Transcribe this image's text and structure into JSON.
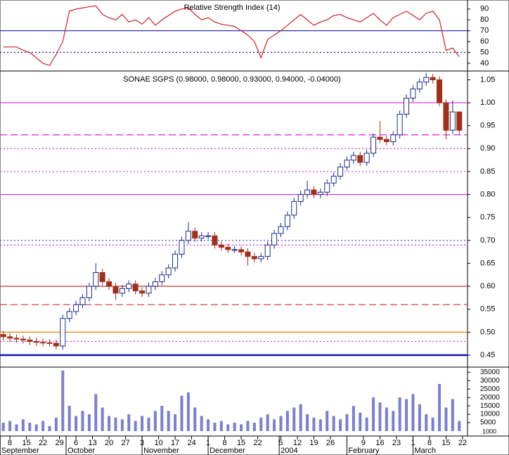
{
  "chart_data": [
    {
      "type": "line",
      "title": "Relative Strength Index (14)",
      "color": "#cc2222",
      "x": [
        0,
        2,
        4,
        6,
        8,
        10,
        12,
        14,
        16,
        18,
        20,
        22,
        24,
        26,
        28,
        30,
        32,
        34,
        36,
        38,
        40,
        42,
        44,
        46,
        48,
        50,
        52,
        54,
        56,
        58,
        60,
        62,
        64,
        66,
        68,
        70,
        72,
        74,
        76,
        78,
        80,
        82,
        84,
        86,
        88,
        90,
        92,
        94,
        96,
        98,
        100,
        102,
        104,
        106,
        108,
        110,
        112,
        114,
        116,
        118,
        120,
        122,
        124,
        126,
        128,
        130,
        132,
        134,
        136,
        138
      ],
      "values": [
        55,
        55,
        55,
        52,
        50,
        45,
        40,
        38,
        48,
        60,
        88,
        90,
        91,
        92,
        93,
        85,
        82,
        80,
        85,
        78,
        80,
        76,
        82,
        75,
        80,
        84,
        88,
        90,
        91,
        85,
        80,
        82,
        78,
        76,
        75,
        74,
        70,
        66,
        60,
        45,
        62,
        66,
        70,
        75,
        80,
        85,
        80,
        75,
        78,
        80,
        84,
        85,
        82,
        80,
        78,
        82,
        86,
        80,
        75,
        82,
        85,
        88,
        84,
        80,
        86,
        88,
        80,
        52,
        54,
        46
      ],
      "xlim": [
        -1,
        140.5
      ],
      "ylim": [
        33.5,
        97
      ],
      "yticks": [
        40,
        50,
        60,
        70,
        80,
        90
      ],
      "levels": [
        {
          "value": 70,
          "color": "#1a1aa0",
          "style": "solid"
        },
        {
          "value": 50,
          "color": "#1a1aa0",
          "style": "dotted"
        }
      ]
    },
    {
      "type": "candlestick",
      "title": "SONAE SGPS (0.98000, 0.98000, 0.93000, 0.94000, -0.04000)",
      "up_color": "#ffffff",
      "down_color": "#a0301a",
      "edge_color": "#1a2a8a",
      "x": [
        0,
        2,
        4,
        6,
        8,
        10,
        12,
        14,
        16,
        18,
        20,
        22,
        24,
        26,
        28,
        30,
        32,
        34,
        36,
        38,
        40,
        42,
        44,
        46,
        48,
        50,
        52,
        54,
        56,
        58,
        60,
        62,
        64,
        66,
        68,
        70,
        72,
        74,
        76,
        78,
        80,
        82,
        84,
        86,
        88,
        90,
        92,
        94,
        96,
        98,
        100,
        102,
        104,
        106,
        108,
        110,
        112,
        114,
        116,
        118,
        120,
        122,
        124,
        126,
        128,
        130,
        132,
        134,
        136,
        138
      ],
      "open": [
        0.495,
        0.49,
        0.487,
        0.485,
        0.483,
        0.48,
        0.478,
        0.477,
        0.476,
        0.47,
        0.53,
        0.545,
        0.56,
        0.575,
        0.6,
        0.63,
        0.61,
        0.6,
        0.585,
        0.595,
        0.605,
        0.59,
        0.585,
        0.6,
        0.61,
        0.625,
        0.64,
        0.67,
        0.7,
        0.72,
        0.705,
        0.71,
        0.71,
        0.69,
        0.685,
        0.68,
        0.68,
        0.675,
        0.665,
        0.66,
        0.665,
        0.69,
        0.715,
        0.73,
        0.755,
        0.785,
        0.8,
        0.81,
        0.8,
        0.805,
        0.825,
        0.84,
        0.86,
        0.875,
        0.885,
        0.87,
        0.89,
        0.925,
        0.92,
        0.915,
        0.93,
        0.975,
        1.01,
        1.03,
        1.045,
        1.055,
        1.05,
        1.0,
        0.94,
        0.98
      ],
      "high": [
        0.503,
        0.498,
        0.495,
        0.493,
        0.491,
        0.488,
        0.486,
        0.485,
        0.484,
        0.538,
        0.553,
        0.568,
        0.583,
        0.608,
        0.65,
        0.638,
        0.618,
        0.608,
        0.603,
        0.613,
        0.613,
        0.598,
        0.608,
        0.618,
        0.633,
        0.648,
        0.678,
        0.708,
        0.74,
        0.728,
        0.718,
        0.718,
        0.718,
        0.698,
        0.693,
        0.688,
        0.688,
        0.683,
        0.673,
        0.673,
        0.698,
        0.723,
        0.738,
        0.763,
        0.793,
        0.808,
        0.83,
        0.818,
        0.813,
        0.833,
        0.848,
        0.868,
        0.883,
        0.893,
        0.893,
        0.898,
        0.933,
        0.96,
        0.928,
        0.938,
        0.983,
        1.018,
        1.038,
        1.053,
        1.065,
        1.063,
        1.058,
        1.008,
        1.005,
        0.98
      ],
      "low": [
        0.482,
        0.479,
        0.477,
        0.475,
        0.472,
        0.47,
        0.469,
        0.468,
        0.462,
        0.462,
        0.522,
        0.537,
        0.552,
        0.567,
        0.592,
        0.602,
        0.592,
        0.57,
        0.577,
        0.587,
        0.582,
        0.577,
        0.577,
        0.592,
        0.602,
        0.617,
        0.632,
        0.662,
        0.692,
        0.697,
        0.697,
        0.702,
        0.682,
        0.677,
        0.672,
        0.672,
        0.667,
        0.645,
        0.652,
        0.652,
        0.657,
        0.682,
        0.707,
        0.722,
        0.747,
        0.777,
        0.792,
        0.792,
        0.792,
        0.797,
        0.817,
        0.832,
        0.852,
        0.867,
        0.862,
        0.862,
        0.882,
        0.912,
        0.907,
        0.907,
        0.922,
        0.967,
        1.002,
        1.022,
        1.037,
        1.042,
        0.992,
        0.92,
        0.932,
        0.93
      ],
      "close": [
        0.49,
        0.487,
        0.485,
        0.483,
        0.48,
        0.478,
        0.477,
        0.476,
        0.47,
        0.53,
        0.545,
        0.56,
        0.575,
        0.6,
        0.63,
        0.61,
        0.6,
        0.585,
        0.595,
        0.605,
        0.59,
        0.585,
        0.6,
        0.61,
        0.625,
        0.64,
        0.67,
        0.7,
        0.72,
        0.705,
        0.71,
        0.71,
        0.69,
        0.685,
        0.68,
        0.68,
        0.675,
        0.665,
        0.66,
        0.665,
        0.69,
        0.715,
        0.73,
        0.755,
        0.785,
        0.8,
        0.81,
        0.8,
        0.805,
        0.825,
        0.84,
        0.86,
        0.875,
        0.885,
        0.87,
        0.89,
        0.925,
        0.92,
        0.915,
        0.93,
        0.975,
        1.01,
        1.03,
        1.045,
        1.055,
        1.05,
        1.0,
        0.94,
        0.98,
        0.94
      ],
      "xlim": [
        -1,
        140.5
      ],
      "ylim": [
        0.427,
        1.066
      ],
      "yticks": [
        0.45,
        {
          "value": 0.5,
          "label": "0.50"
        },
        0.55,
        {
          "value": 0.6,
          "label": "0.60"
        },
        0.65,
        {
          "value": 0.7,
          "label": "0.70"
        },
        0.75,
        {
          "value": 0.8,
          "label": "0.80"
        },
        0.85,
        {
          "value": 0.9,
          "label": "0.90"
        },
        0.95,
        {
          "value": 1.0,
          "label": "1.00"
        },
        1.05
      ],
      "levels": [
        {
          "value": 1.0,
          "color": "#e020e0",
          "style": "solid"
        },
        {
          "value": 0.93,
          "color": "#e020e0",
          "style": "dashed"
        },
        {
          "value": 0.9,
          "color": "#e020e0",
          "style": "dotted"
        },
        {
          "value": 0.85,
          "color": "#e020e0",
          "style": "dotted"
        },
        {
          "value": 0.8,
          "color": "#e020e0",
          "style": "solid"
        },
        {
          "value": 0.7,
          "color": "#5050c0",
          "style": "dotted"
        },
        {
          "value": 0.69,
          "color": "#e020e0",
          "style": "dotted"
        },
        {
          "value": 0.6,
          "color": "#d03030",
          "style": "solid"
        },
        {
          "value": 0.56,
          "color": "#d03030",
          "style": "dashed"
        },
        {
          "value": 0.5,
          "color": "#ff8000",
          "style": "solid"
        },
        {
          "value": 0.48,
          "color": "#e020e0",
          "style": "dotted"
        },
        {
          "value": 0.45,
          "color": "#1010c0",
          "style": "thick"
        }
      ]
    },
    {
      "type": "bar",
      "color": "#7b7fcf",
      "unit_label": "1000",
      "x": [
        0,
        2,
        4,
        6,
        8,
        10,
        12,
        14,
        16,
        18,
        20,
        22,
        24,
        26,
        28,
        30,
        32,
        34,
        36,
        38,
        40,
        42,
        44,
        46,
        48,
        50,
        52,
        54,
        56,
        58,
        60,
        62,
        64,
        66,
        68,
        70,
        72,
        74,
        76,
        78,
        80,
        82,
        84,
        86,
        88,
        90,
        92,
        94,
        96,
        98,
        100,
        102,
        104,
        106,
        108,
        110,
        112,
        114,
        116,
        118,
        120,
        122,
        124,
        126,
        128,
        130,
        132,
        134,
        136,
        138
      ],
      "values": [
        5000,
        6000,
        4000,
        7000,
        5000,
        4000,
        6000,
        3000,
        8000,
        36000,
        15000,
        9000,
        12000,
        10000,
        22000,
        14000,
        9000,
        8000,
        7000,
        10000,
        6000,
        9000,
        8000,
        12000,
        15000,
        12000,
        10000,
        21000,
        23000,
        14000,
        9000,
        7000,
        5000,
        6000,
        4000,
        5000,
        4000,
        6000,
        5000,
        8000,
        10000,
        7000,
        9000,
        12000,
        14000,
        16000,
        10000,
        8000,
        7000,
        12000,
        9000,
        7000,
        10000,
        15000,
        11000,
        8000,
        20000,
        17000,
        14000,
        12000,
        20000,
        19000,
        22000,
        16000,
        10000,
        8000,
        28000,
        14000,
        19000,
        6000
      ],
      "xlim": [
        -1,
        140.5
      ],
      "ylim": [
        0,
        37200
      ],
      "yticks": [
        5000,
        10000,
        15000,
        20000,
        25000,
        30000,
        35000
      ],
      "xticks": [
        {
          "value": 2,
          "label": "8"
        },
        {
          "value": 7,
          "label": "15"
        },
        {
          "value": 12,
          "label": "22"
        },
        {
          "value": 17,
          "label": "29"
        },
        {
          "value": 22,
          "label": "6"
        },
        {
          "value": 27,
          "label": "13"
        },
        {
          "value": 32,
          "label": "20"
        },
        {
          "value": 37,
          "label": "27"
        },
        {
          "value": 42,
          "label": "3"
        },
        {
          "value": 47,
          "label": "10"
        },
        {
          "value": 52,
          "label": "17"
        },
        {
          "value": 57,
          "label": "24"
        },
        {
          "value": 62,
          "label": "1"
        },
        {
          "value": 67,
          "label": "8"
        },
        {
          "value": 72,
          "label": "15"
        },
        {
          "value": 77,
          "label": "22"
        },
        {
          "value": 84,
          "label": "5"
        },
        {
          "value": 89,
          "label": "12"
        },
        {
          "value": 94,
          "label": "19"
        },
        {
          "value": 99,
          "label": "26"
        },
        {
          "value": 109,
          "label": "9"
        },
        {
          "value": 114,
          "label": "16"
        },
        {
          "value": 119,
          "label": "23"
        },
        {
          "value": 124,
          "label": "1"
        },
        {
          "value": 129,
          "label": "8"
        },
        {
          "value": 134,
          "label": "15"
        },
        {
          "value": 139,
          "label": "22"
        }
      ],
      "month_ticks": [
        {
          "value": -1,
          "label": "September"
        },
        {
          "value": 19,
          "label": "October"
        },
        {
          "value": 42,
          "label": "November"
        },
        {
          "value": 62,
          "label": "December"
        },
        {
          "value": 83.5,
          "label": "2004"
        },
        {
          "value": 104,
          "label": "February"
        },
        {
          "value": 124,
          "label": "March"
        }
      ]
    }
  ]
}
